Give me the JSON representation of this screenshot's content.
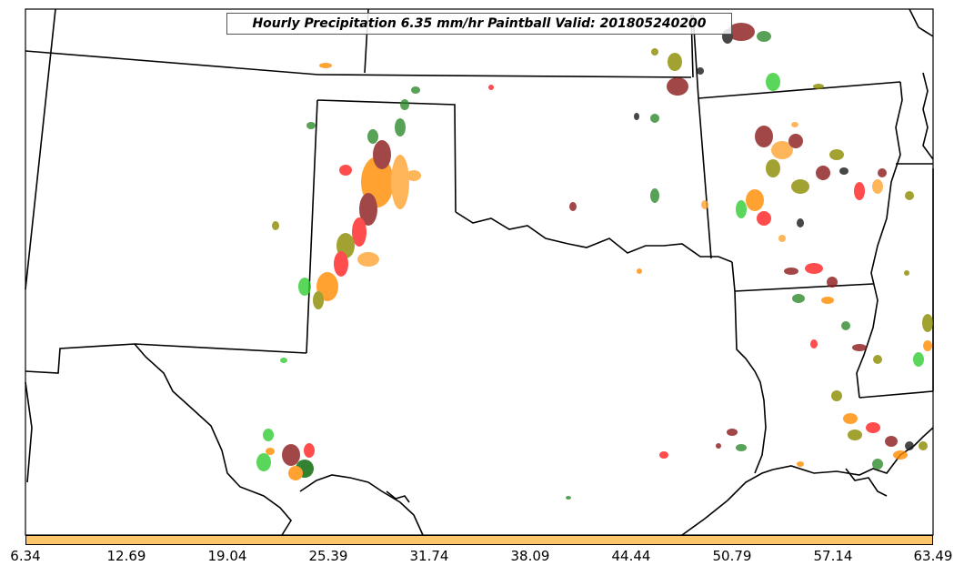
{
  "map": {
    "title": "Hourly Precipitation 6.35 mm/hr Paintball Valid: 201805240200",
    "legend_colors": [
      "#2e8b2e",
      "#32cd32",
      "#8b1a1a",
      "#ff2020",
      "#ff8c00",
      "#ffa533",
      "#8b8b00",
      "#1a1a1a"
    ]
  },
  "colorbar": {
    "color": "#ffc56b",
    "ticks": [
      "6.34",
      "12.69",
      "19.04",
      "25.39",
      "31.74",
      "38.09",
      "44.44",
      "50.79",
      "57.14",
      "63.49"
    ]
  }
}
